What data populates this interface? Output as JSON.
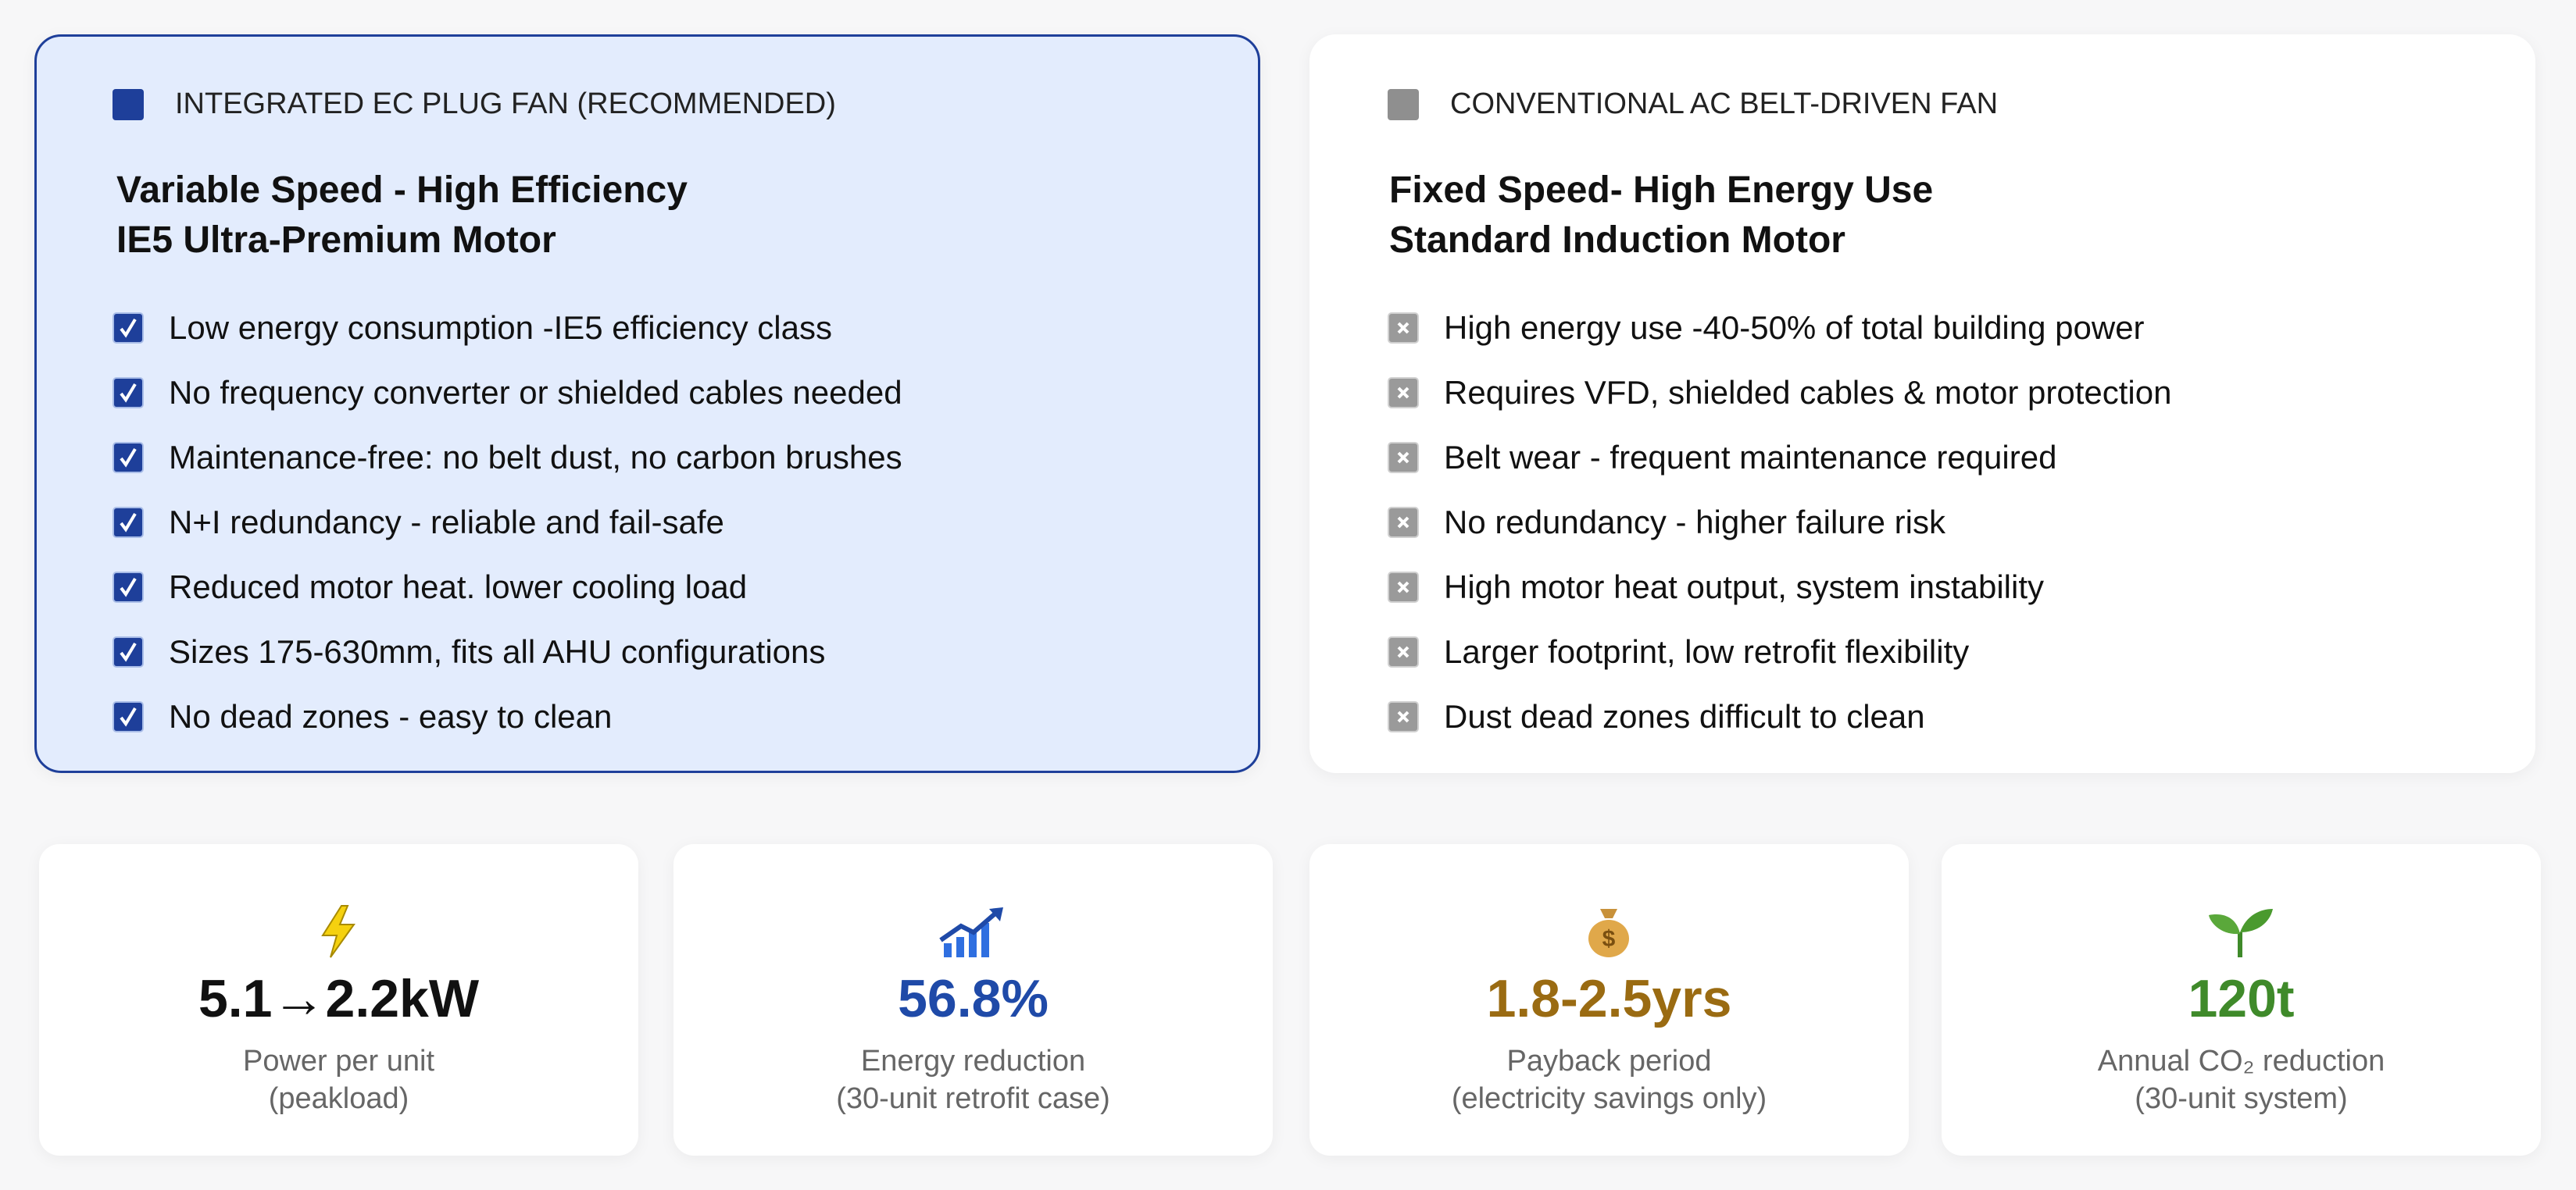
{
  "cards": [
    {
      "tag": "INTEGRATED EC PLUG FAN (RECOMMENDED)",
      "title": [
        "Variable Speed - High Efficiency",
        "IE5 Ultra-Premium Motor"
      ],
      "items": [
        "Low energy consumption -IE5 efficiency class",
        "No frequency converter or shielded cables needed",
        "Maintenance-free: no belt dust, no carbon brushes",
        "N+I redundancy - reliable and fail-safe",
        "Reduced motor heat. lower cooling load",
        "Sizes 175-630mm, fits all AHU configurations",
        "No dead zones - easy to clean"
      ]
    },
    {
      "tag": "CONVENTIONAL AC BELT-DRIVEN FAN",
      "title": [
        "Fixed Speed- High Energy Use",
        "Standard Induction Motor"
      ],
      "items": [
        "High energy use -40-50% of total building power",
        "Requires VFD, shielded cables & motor protection",
        "Belt wear - frequent maintenance required",
        "No redundancy - higher failure risk",
        "High motor heat output, system instability",
        "Larger footprint, low retrofit flexibility",
        "Dust dead zones  difficult to clean"
      ]
    }
  ],
  "stats": [
    {
      "value": "5.1→2.2kW",
      "color": "#111111",
      "label": [
        "Power per unit",
        "(peakload)"
      ]
    },
    {
      "value": "56.8%",
      "color": "#1f4aa8",
      "label": [
        "Energy reduction",
        "(30-unit retrofit case)"
      ]
    },
    {
      "value": "1.8-2.5yrs",
      "color": "#9a6b12",
      "label": [
        "Payback period",
        "(electricity savings only)"
      ]
    },
    {
      "value": "120t",
      "color": "#3f8a2a",
      "label": [
        "Annual CO₂ reduction",
        "(30-unit system)"
      ]
    }
  ]
}
